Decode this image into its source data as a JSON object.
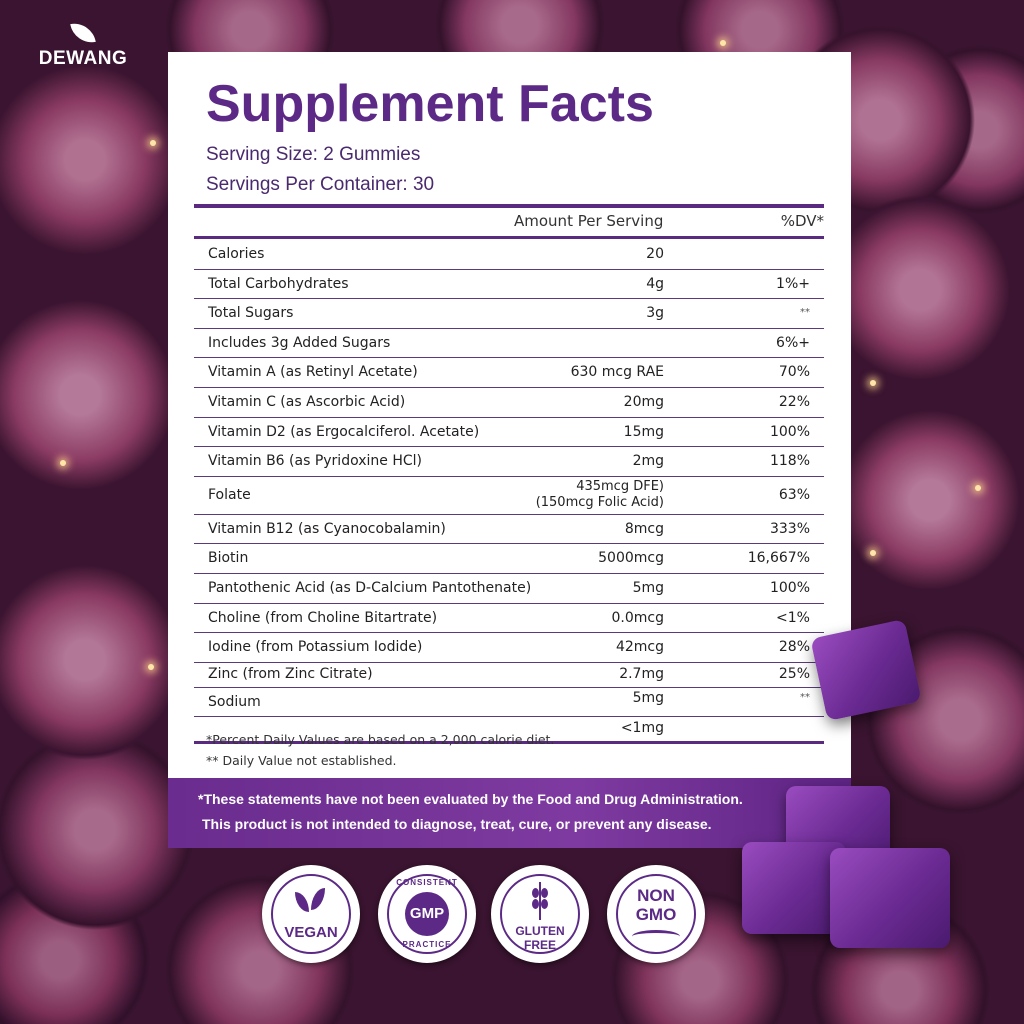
{
  "brand": {
    "name": "DEWANG",
    "logo_icon": "leaf-icon"
  },
  "facts": {
    "title": "Supplement Facts",
    "serving_size": "Serving Size: 2 Gummies",
    "servings_per_container": "Servings Per Container: 30",
    "header_amount": "Amount Per Serving",
    "header_dv": "%DV*",
    "rows": [
      {
        "name": "Calories",
        "amount": "20",
        "dv": ""
      },
      {
        "name": "Total Carbohydrates",
        "amount": "4g",
        "dv": "1%+"
      },
      {
        "name": "Total Sugars",
        "amount": "3g",
        "dv": "**"
      },
      {
        "name": "Includes 3g Added Sugars",
        "amount": "",
        "dv": "6%+"
      },
      {
        "name": "Vitamin A (as Retinyl Acetate)",
        "amount": "630 mcg RAE",
        "dv": "70%"
      },
      {
        "name": "Vitamin C (as Ascorbic Acid)",
        "amount": "20mg",
        "dv": "22%"
      },
      {
        "name": "Vitamin D2 (as Ergocalciferol. Acetate)",
        "amount": "15mg",
        "dv": "100%"
      },
      {
        "name": "Vitamin B6 (as Pyridoxine HCl)",
        "amount": "2mg",
        "dv": "118%"
      },
      {
        "name": "Folate",
        "amount": "435mcg DFE)",
        "amount2": "(150mcg Folic Acid)",
        "dv": "63%"
      },
      {
        "name": "Vitamin B12 (as Cyanocobalamin)",
        "amount": "8mcg",
        "dv": "333%"
      },
      {
        "name": "Biotin",
        "amount": "5000mcg",
        "dv": "16,667%"
      },
      {
        "name": "Pantothenic Acid (as D-Calcium Pantothenate)",
        "amount": "5mg",
        "dv": "100%"
      },
      {
        "name": "Choline (from Choline Bitartrate)",
        "amount": "0.0mcg",
        "dv": "<1%"
      },
      {
        "name": "Iodine (from Potassium Iodide)",
        "amount": "42mcg",
        "dv": "28%"
      },
      {
        "name": "Zinc (from Zinc Citrate)",
        "amount": "2.7mg",
        "dv": "25%"
      },
      {
        "name": "Sodium",
        "amount": "5mg",
        "dv": "**"
      },
      {
        "name": "",
        "amount": "<1mg",
        "dv": ""
      }
    ],
    "footnote1": "*Percent Daily Values are based on a 2,000 calorie diet.",
    "footnote2": "** Daily Value not established."
  },
  "disclaimer": {
    "line1": "*These statements have not been evaluated by the Food and Drug Administration.",
    "line2": "This product is not intended to diagnose, treat, cure, or prevent any disease."
  },
  "badges": {
    "vegan": "VEGAN",
    "gmp": "GMP",
    "gmp_top": "CONSISTENT",
    "gmp_bottom": "PRACTICE",
    "gluten1": "GLUTEN",
    "gluten2": "FREE",
    "nongmo1": "NON",
    "nongmo2": "GMO"
  },
  "colors": {
    "accent": "#5c2a86",
    "band": "#6a2c8e"
  }
}
